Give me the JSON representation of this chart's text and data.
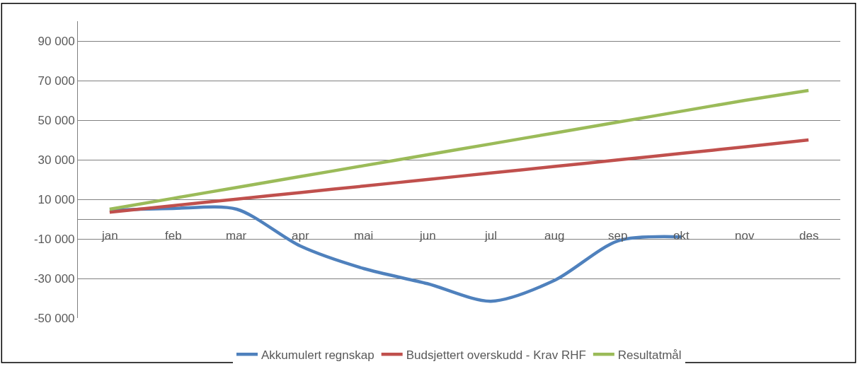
{
  "chart_data": {
    "type": "line",
    "categories": [
      "jan",
      "feb",
      "mar",
      "apr",
      "mai",
      "jun",
      "jul",
      "aug",
      "sep",
      "okt",
      "nov",
      "des"
    ],
    "series": [
      {
        "name": "Akkumulert regnskap",
        "color": "#4f81bd",
        "values": [
          4500,
          5400,
          5000,
          -13600,
          -25000,
          -32600,
          -41500,
          -31000,
          -11000,
          -9000,
          null,
          null
        ]
      },
      {
        "name": "Budsjettert overskudd - Krav RHF",
        "color": "#c0504d",
        "values": [
          3500,
          6800,
          10100,
          13400,
          16700,
          20000,
          23300,
          26600,
          29900,
          33200,
          36500,
          40000
        ]
      },
      {
        "name": "Resultatmål",
        "color": "#9bbb59",
        "values": [
          5000,
          10500,
          16000,
          21500,
          27000,
          32500,
          38000,
          43500,
          49000,
          54500,
          60000,
          65000
        ]
      }
    ],
    "ylim": [
      -50000,
      100000
    ],
    "yticks": [
      {
        "value": -50000,
        "label": "-50 000"
      },
      {
        "value": -30000,
        "label": "-30 000"
      },
      {
        "value": -10000,
        "label": "-10 000"
      },
      {
        "value": 10000,
        "label": "10 000"
      },
      {
        "value": 30000,
        "label": "30 000"
      },
      {
        "value": 50000,
        "label": "50 000"
      },
      {
        "value": 70000,
        "label": "70 000"
      },
      {
        "value": 90000,
        "label": "90 000"
      }
    ],
    "grid": "y",
    "legend": "bottom",
    "marker": "none",
    "line_style": "solid"
  }
}
